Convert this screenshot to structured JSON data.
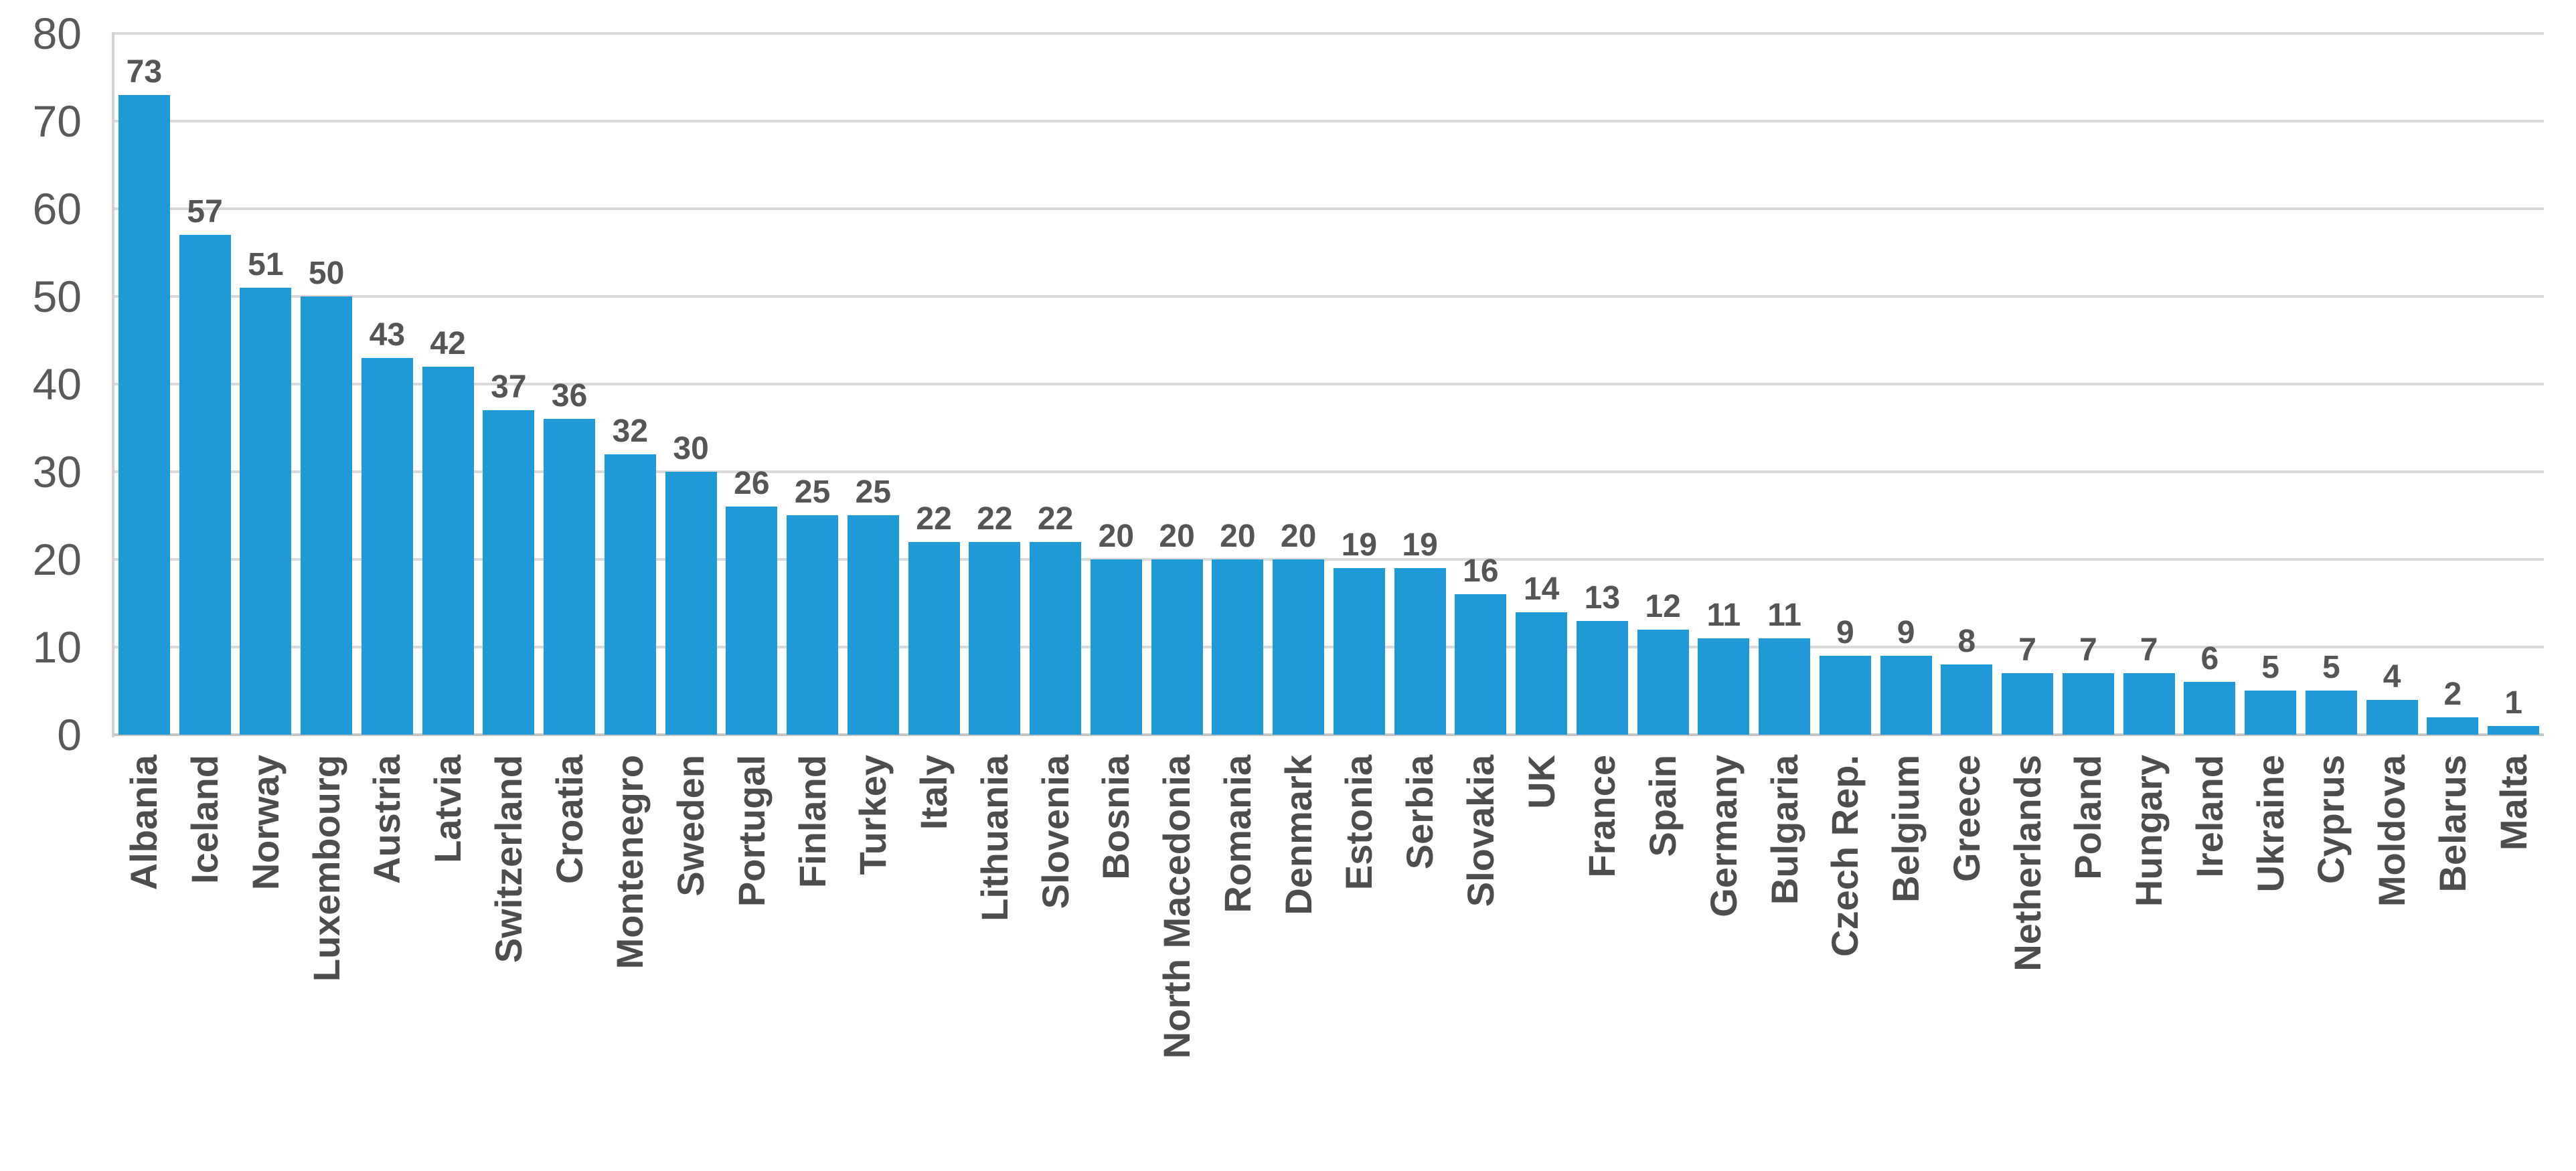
{
  "chart_data": {
    "type": "bar",
    "title": "",
    "xlabel": "",
    "ylabel": "",
    "categories": [
      "Albania",
      "Iceland",
      "Norway",
      "Luxembourg",
      "Austria",
      "Latvia",
      "Switzerland",
      "Croatia",
      "Montenegro",
      "Sweden",
      "Portugal",
      "Finland",
      "Turkey",
      "Italy",
      "Lithuania",
      "Slovenia",
      "Bosnia",
      "North Macedonia",
      "Romania",
      "Denmark",
      "Estonia",
      "Serbia",
      "Slovakia",
      "UK",
      "France",
      "Spain",
      "Germany",
      "Bulgaria",
      "Czech Rep.",
      "Belgium",
      "Greece",
      "Netherlands",
      "Poland",
      "Hungary",
      "Ireland",
      "Ukraine",
      "Cyprus",
      "Moldova",
      "Belarus",
      "Malta"
    ],
    "values": [
      73,
      57,
      51,
      50,
      43,
      42,
      37,
      36,
      32,
      30,
      26,
      25,
      25,
      22,
      22,
      22,
      20,
      20,
      20,
      20,
      19,
      19,
      16,
      14,
      13,
      12,
      11,
      11,
      9,
      9,
      8,
      7,
      7,
      7,
      6,
      5,
      5,
      4,
      2,
      1
    ],
    "ylim": [
      0,
      80
    ],
    "yticks": [
      0,
      10,
      20,
      30,
      40,
      50,
      60,
      70,
      80
    ],
    "grid": true,
    "legend_position": "none",
    "data_labels": "above-bars",
    "x_label_rotation_deg": -90
  },
  "style": {
    "bar_color": "#1F9AD6",
    "gridline_color": "#D9D9D9",
    "baseline_color": "#C6C6C6",
    "axis_line_color": "#D2D2D2",
    "ytick_label_color": "#595959",
    "data_label_color": "#555555",
    "xtick_label_color": "#4D4D4D",
    "background": "#FFFFFF"
  }
}
